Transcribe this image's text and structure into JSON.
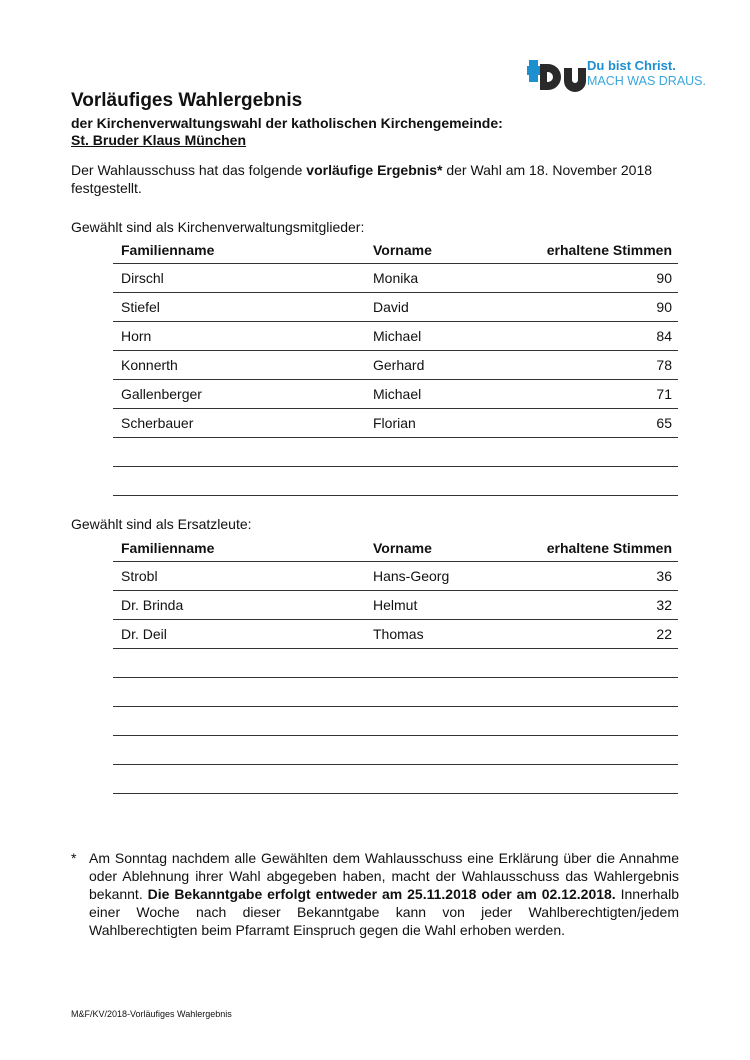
{
  "logo": {
    "mark": "Du",
    "line1": "Du bist Christ.",
    "line2": "MACH WAS DRAUS.",
    "colors": {
      "blue": "#1e8fcf",
      "dark": "#2a2a2a"
    }
  },
  "title": "Vorläufiges Wahlergebnis",
  "subtitle": "der Kirchenverwaltungswahl der katholischen Kirchengemeinde:",
  "parish": "St. Bruder Klaus München",
  "intro": {
    "before": "Der Wahlausschuss hat das folgende ",
    "bold": "vorläufige Ergebnis*",
    "after": " der Wahl am 18. November 2018 festgestellt."
  },
  "members": {
    "label": "Gewählt sind als Kirchenverwaltungsmitglieder:",
    "headers": [
      "Familienname",
      "Vorname",
      "erhaltene Stimmen"
    ],
    "rows": [
      [
        "Dirschl",
        "Monika",
        "90"
      ],
      [
        "Stiefel",
        "David",
        "90"
      ],
      [
        "Horn",
        "Michael",
        "84"
      ],
      [
        "Konnerth",
        "Gerhard",
        "78"
      ],
      [
        "Gallenberger",
        "Michael",
        "71"
      ],
      [
        "Scherbauer",
        "Florian",
        "65"
      ],
      [
        "",
        "",
        ""
      ],
      [
        "",
        "",
        ""
      ]
    ]
  },
  "substitutes": {
    "label": "Gewählt sind als Ersatzleute:",
    "headers": [
      "Familienname",
      "Vorname",
      "erhaltene Stimmen"
    ],
    "rows": [
      [
        "Strobl",
        "Hans-Georg",
        "36"
      ],
      [
        "Dr. Brinda",
        "Helmut",
        "32"
      ],
      [
        "Dr. Deil",
        "Thomas",
        "22"
      ],
      [
        "",
        "",
        ""
      ],
      [
        "",
        "",
        ""
      ],
      [
        "",
        "",
        ""
      ],
      [
        "",
        "",
        ""
      ],
      [
        "",
        "",
        ""
      ]
    ]
  },
  "footnote": {
    "marker": "*",
    "before": "Am Sonntag nachdem alle Gewählten dem Wahlausschuss eine Erklärung über die Annahme oder Ablehnung ihrer Wahl abgegeben haben, macht der Wahlausschuss das Wahlergebnis bekannt. ",
    "bold": "Die Bekanntgabe erfolgt entweder am 25.11.2018 oder am 02.12.2018.",
    "after": " Innerhalb einer Woche nach dieser Bekanntgabe kann von jeder Wahlberechtigten/jedem Wahlberechtigten beim Pfarramt Einspruch gegen die Wahl erhoben werden."
  },
  "footer": "M&F/KV/2018-Vorläufiges Wahlergebnis"
}
